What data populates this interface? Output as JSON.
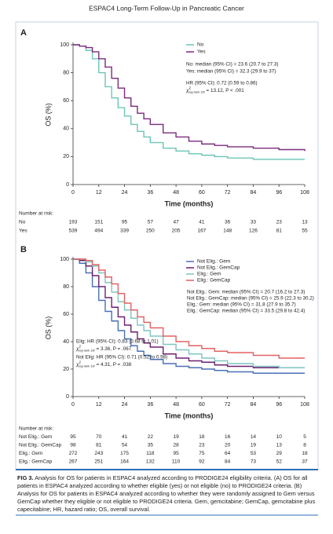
{
  "header": "ESPAC4 Long-Term Follow-Up in Pancreatic Cancer",
  "chart_data": [
    {
      "type": "line",
      "step": true,
      "panel_label": "A",
      "ylabel": "OS (%)",
      "xlabel": "Time (months)",
      "xlim": [
        0,
        108
      ],
      "xticks": [
        0,
        12,
        24,
        36,
        48,
        60,
        72,
        84,
        96,
        108
      ],
      "ylim": [
        0,
        100
      ],
      "yticks": [
        0,
        20,
        40,
        60,
        80,
        100
      ],
      "legend_position": "upper right",
      "x": [
        0,
        3,
        6,
        9,
        12,
        15,
        18,
        21,
        24,
        27,
        30,
        33,
        36,
        42,
        48,
        54,
        60,
        66,
        72,
        84,
        96,
        108
      ],
      "series": [
        {
          "name": "No",
          "color": "#6cc4b8",
          "values": [
            100,
            99,
            96,
            90,
            80,
            70,
            62,
            55,
            49,
            43,
            38,
            34,
            30,
            26,
            24,
            22,
            21,
            20,
            19,
            18,
            18,
            18
          ]
        },
        {
          "name": "Yes",
          "color": "#7b2a7e",
          "values": [
            100,
            99,
            98,
            95,
            90,
            84,
            76,
            69,
            62,
            56,
            51,
            47,
            43,
            37,
            34,
            31,
            29,
            28,
            27,
            26,
            25,
            24
          ]
        }
      ],
      "annotations": [
        "No: median (95% CI) = 23.6 (20.7 to 27.3)",
        "Yes: median (95% CI) = 32.3 (29.9 to 37)"
      ],
      "stats": [
        {
          "hr": "HR (95% CI): 0.72 (0.59 to 0.86)",
          "chi": {
            "symbol": "χ",
            "sup": "2",
            "sub": "log-rank 1df",
            "text": "= 13.12, P < .001"
          }
        }
      ],
      "risk_table": {
        "title": "Number at risk:",
        "rows": [
          {
            "label": "No",
            "values": [
              193,
              151,
              95,
              57,
              47,
              41,
              36,
              33,
              23,
              13
            ]
          },
          {
            "label": "Yes",
            "values": [
              539,
              494,
              339,
              250,
              205,
              167,
              148,
              126,
              81,
              55
            ]
          }
        ]
      }
    },
    {
      "type": "line",
      "step": true,
      "panel_label": "B",
      "ylabel": "OS (%)",
      "xlabel": "Time (months)",
      "xlim": [
        0,
        108
      ],
      "xticks": [
        0,
        12,
        24,
        36,
        48,
        60,
        72,
        84,
        96,
        108
      ],
      "ylim": [
        0,
        100
      ],
      "yticks": [
        0,
        20,
        40,
        60,
        80,
        100
      ],
      "legend_position": "upper right",
      "x": [
        0,
        3,
        6,
        9,
        12,
        15,
        18,
        21,
        24,
        27,
        30,
        33,
        36,
        42,
        48,
        54,
        60,
        66,
        72,
        84,
        96,
        108
      ],
      "series": [
        {
          "name": "Not Elig.: Gem",
          "color": "#4a6fb5",
          "values": [
            100,
            97,
            90,
            80,
            70,
            62,
            55,
            48,
            42,
            37,
            33,
            30,
            27,
            24,
            22,
            21,
            20,
            19,
            18,
            17,
            17,
            17
          ]
        },
        {
          "name": "Not Elig.: GemCap",
          "color": "#6b2070",
          "values": [
            100,
            99,
            95,
            88,
            80,
            72,
            65,
            58,
            52,
            47,
            42,
            39,
            36,
            31,
            28,
            26,
            25,
            23,
            22,
            21,
            21,
            21
          ]
        },
        {
          "name": "Elig.: Gem",
          "color": "#7cc6c0",
          "values": [
            100,
            100,
            98,
            95,
            90,
            83,
            76,
            69,
            63,
            57,
            52,
            48,
            44,
            38,
            34,
            31,
            28,
            26,
            24,
            22,
            21,
            21
          ]
        },
        {
          "name": "Elig.: GemCap",
          "color": "#e06262",
          "values": [
            100,
            100,
            99,
            96,
            92,
            87,
            82,
            75,
            68,
            63,
            58,
            54,
            50,
            44,
            40,
            37,
            35,
            33,
            32,
            30,
            28,
            28
          ]
        }
      ],
      "annotations": [
        "Not Elig.: Gem: median (95% CI) = 20.7 (16.2 to 27.3)",
        "Not Elig.: GemCap: median (95% CI) = 25.9 (22.3 to 30.2)",
        "Elig.: Gem: median (95% CI) = 31.8 (27.9 to 35.7)",
        "Elig.: GemCap: median (95% CI) = 33.5 (29.8 to 42.4)"
      ],
      "stats": [
        {
          "hr": "Elig: HR (95% CI): 0.83 (0.68 to 1.01)",
          "chi": {
            "symbol": "χ",
            "sup": "2",
            "sub": "log-rank 1df",
            "text": "= 3.36, P = .067"
          }
        },
        {
          "hr": "Not Elig: HR (95% CI): 0.71 (0.52 to 0.98)",
          "chi": {
            "symbol": "χ",
            "sup": "2",
            "sub": "log-rank 1df",
            "text": "= 4.31, P = .038"
          }
        }
      ],
      "risk_table": {
        "title": "Number at risk:",
        "rows": [
          {
            "label": "Not Elig.: Gem",
            "values": [
              95,
              70,
              41,
              22,
              19,
              18,
              16,
              14,
              10,
              5
            ]
          },
          {
            "label": "Not Elig.: GemCap",
            "values": [
              98,
              81,
              54,
              35,
              28,
              23,
              20,
              19,
              13,
              8
            ]
          },
          {
            "label": "Elig.: Gem",
            "values": [
              272,
              243,
              175,
              118,
              95,
              75,
              64,
              53,
              29,
              18
            ]
          },
          {
            "label": "Elig.: GemCap",
            "values": [
              267,
              251,
              164,
              132,
              110,
              92,
              84,
              73,
              52,
              37
            ]
          }
        ]
      }
    }
  ],
  "caption": {
    "label": "FIG 3.",
    "text": "Analysis for OS for patients in ESPAC4 analyzed according to PRODIGE24 eligibility criteria. (A) OS for all patients in ESPAC4 analyzed according to whether eligible (yes) or not eligible (no) to PRODIGE24 criteria. (B) Analysis for OS for patients in ESPAC4 analyzed according to whether they were randomly assigned to Gem versus GemCap whether they eligible or not eligible to PRODIGE24 criteria. Gem, gemcitabine; GemCap, gemcitabine plus capecitabine; HR, hazard ratio; OS, overall survival."
  }
}
